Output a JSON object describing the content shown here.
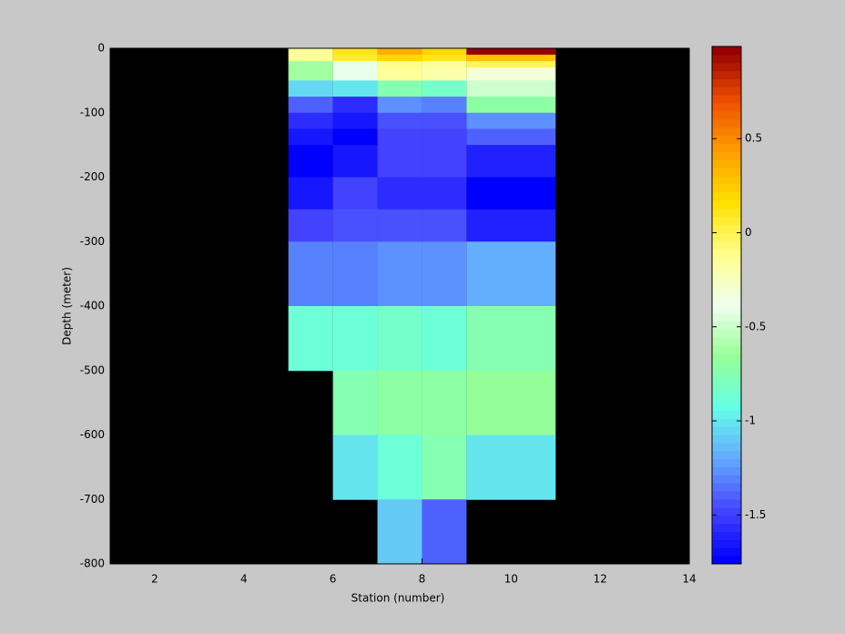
{
  "chart_data": {
    "type": "heatmap",
    "xlabel": "Station (number)",
    "ylabel": "Depth (meter)",
    "xbins": [
      5,
      6,
      7,
      8,
      9,
      11
    ],
    "ybins": [
      0,
      -10,
      -20,
      -30,
      -50,
      -75,
      -100,
      -125,
      -150,
      -200,
      -250,
      -300,
      -400,
      -500,
      -600,
      -700,
      -800
    ],
    "values": [
      [
        -0.15,
        0.1,
        0.35,
        0.2,
        0.95
      ],
      [
        -0.15,
        0.05,
        0.2,
        0.1,
        0.3
      ],
      [
        -0.6,
        -0.4,
        -0.1,
        -0.15,
        0.0
      ],
      [
        -0.6,
        -0.4,
        -0.15,
        -0.2,
        -0.3
      ],
      [
        -1.05,
        -1.0,
        -0.75,
        -0.85,
        -0.5
      ],
      [
        -1.4,
        -1.55,
        -1.25,
        -1.3,
        -0.7
      ],
      [
        -1.55,
        -1.65,
        -1.45,
        -1.45,
        -1.25
      ],
      [
        -1.65,
        -1.72,
        -1.5,
        -1.5,
        -1.4
      ],
      [
        -1.72,
        -1.65,
        -1.5,
        -1.5,
        -1.62
      ],
      [
        -1.65,
        -1.5,
        -1.55,
        -1.55,
        -1.72
      ],
      [
        -1.5,
        -1.45,
        -1.45,
        -1.45,
        -1.6
      ],
      [
        -1.3,
        -1.3,
        -1.25,
        -1.25,
        -1.2
      ],
      [
        -0.9,
        -0.9,
        -0.85,
        -0.9,
        -0.75
      ],
      [
        null,
        -0.75,
        -0.7,
        -0.7,
        -0.65
      ],
      [
        null,
        -1.0,
        -0.9,
        -0.75,
        -1.0
      ],
      [
        null,
        null,
        -1.1,
        -1.4,
        null
      ]
    ],
    "xlim": [
      1,
      14
    ],
    "xticks": [
      2,
      4,
      6,
      8,
      10,
      12,
      14
    ],
    "ylim": [
      -800,
      0
    ],
    "yticks": [
      0,
      -100,
      -200,
      -300,
      -400,
      -500,
      -600,
      -700,
      -800
    ],
    "clim": [
      -1.76,
      0.99
    ],
    "cticks": [
      0.5,
      0,
      -0.5,
      -1,
      -1.5
    ],
    "colormap": [
      "#0000ff",
      "#4646ff",
      "#64aaff",
      "#64ffe6",
      "#96ff96",
      "#f0fff0",
      "#ffff8c",
      "#ffe100",
      "#ffa000",
      "#f05000",
      "#960000"
    ],
    "levels": 64,
    "background": "#000000"
  }
}
